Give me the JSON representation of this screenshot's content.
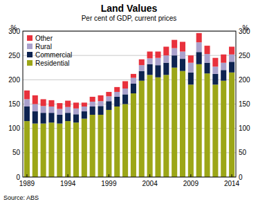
{
  "chart_data": {
    "type": "bar",
    "stacked": true,
    "title": "Land Values",
    "subtitle": "Per cent of GDP, current prices",
    "ylabel": "%",
    "source": "Source: ABS",
    "categories": [
      "1989",
      null,
      null,
      null,
      null,
      "1994",
      null,
      null,
      null,
      null,
      "1999",
      null,
      null,
      null,
      null,
      "2004",
      null,
      null,
      null,
      null,
      "2009",
      null,
      null,
      null,
      null,
      "2014"
    ],
    "series": [
      {
        "name": "Residential",
        "color": "#9ca617",
        "values": [
          115,
          110,
          110,
          112,
          110,
          115,
          112,
          120,
          128,
          128,
          138,
          145,
          150,
          172,
          198,
          210,
          205,
          210,
          225,
          218,
          190,
          232,
          213,
          190,
          198,
          215
        ]
      },
      {
        "name": "Commercial",
        "color": "#0d2350",
        "values": [
          30,
          25,
          22,
          20,
          18,
          17,
          17,
          15,
          17,
          18,
          18,
          20,
          20,
          20,
          20,
          22,
          25,
          25,
          25,
          25,
          25,
          25,
          22,
          22,
          22,
          22
        ]
      },
      {
        "name": "Rural",
        "color": "#a9a1cc",
        "values": [
          15,
          15,
          14,
          13,
          12,
          12,
          12,
          10,
          10,
          10,
          10,
          10,
          12,
          12,
          12,
          12,
          15,
          15,
          15,
          15,
          20,
          20,
          18,
          15,
          15,
          15
        ]
      },
      {
        "name": "Other",
        "color": "#e8313c",
        "values": [
          18,
          18,
          14,
          13,
          12,
          13,
          12,
          8,
          10,
          12,
          9,
          10,
          15,
          8,
          12,
          14,
          13,
          18,
          17,
          20,
          15,
          19,
          17,
          18,
          17,
          16
        ]
      }
    ],
    "ylim": [
      0,
      300
    ],
    "yticks": [
      0,
      50,
      100,
      150,
      200,
      250,
      300
    ],
    "grid": true,
    "legend": "top-left"
  }
}
